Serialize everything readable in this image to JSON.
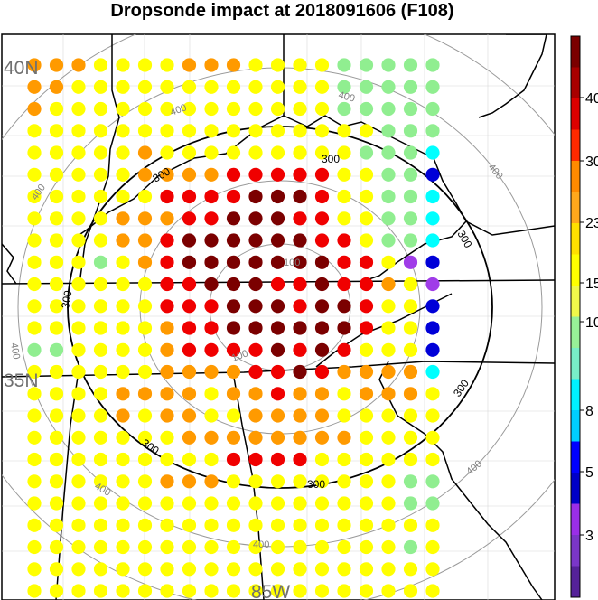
{
  "title": "Dropsonde impact at 2018091606 (F108)",
  "lat_labels": [
    "40N",
    "35N"
  ],
  "lon_labels": [
    "85W"
  ],
  "contour_labels": {
    "black": "300",
    "gray_outer": "400",
    "gray_inner": "100"
  },
  "colorbar": {
    "ticks": [
      "40",
      "30",
      "23",
      "15",
      "10",
      "8",
      "5",
      "3"
    ],
    "colors": [
      "#7b0000",
      "#a90000",
      "#dd0000",
      "#ff2a00",
      "#ff8a00",
      "#ffa81c",
      "#ffe000",
      "#ffff00",
      "#f0f84a",
      "#98f098",
      "#78eec8",
      "#00f0ff",
      "#00d0ff",
      "#0000ff",
      "#0000c8",
      "#9a2ee8",
      "#7a36c8",
      "#552299"
    ]
  },
  "chart_data": {
    "type": "map",
    "title": "Dropsonde impact at 2018091606 (F108)",
    "legend_ticks": [
      40,
      30,
      23,
      15,
      10,
      8,
      5,
      3
    ],
    "colors": {
      "dark-red": "#7b0000",
      "red": "#f00000",
      "orange": "#ff9a00",
      "yellow": "#ffff00",
      "light-green": "#90ee90",
      "cyan": "#00ffff",
      "blue": "#0000d8",
      "purple": "#a03ce8"
    },
    "grid_rows": [
      "OOOYYYYOOOYYYYGGGGG",
      "OOYYYYYYYYYYYYGGGGG",
      "OYYYYYYYYYYYYYGGGGG",
      "YYYYYYYYYYYYYYYYGGG",
      "YYYYYOYYYYYYYYYGGGC",
      "YYYYYOOOORRRRRYYGGB",
      "YYYYYYRRRRDDDRYYGGC",
      "YYYYOOORRDDDRRYYGGC",
      "YYYYOORDDDDDDRRYGGC",
      "YYYGYORDDDDDDDRRYPB",
      "YYYYYYRRDDDRRDRROYP",
      "YYYYYYRRRDDDRDDRYYB",
      "YYYYYYORRDDDDDDRYYB",
      "GGYYYYORRRRDRDRYYYB",
      "YYYYYYOOOORRDROOOOC",
      "YYYYOOOOYOOROOYOOOY",
      "YYYYOYOOYYOOOOYYYYY",
      "YYYYYYYOOOOOOOOYYYY",
      "YYYYYYYYYRRRRYYYYYY",
      "YYYYYYOOOYYYYYYYYGG",
      "YYYYYYYYYYYYYYYYYGG",
      "YYYYYYYYYYYYYYYYYYY",
      "YYYYYYYYYYYYYYYYYGY",
      "YYYYYYYYYYYYYYYYYYY",
      "YYYYYYYYYYYYYYYYYYY"
    ]
  }
}
